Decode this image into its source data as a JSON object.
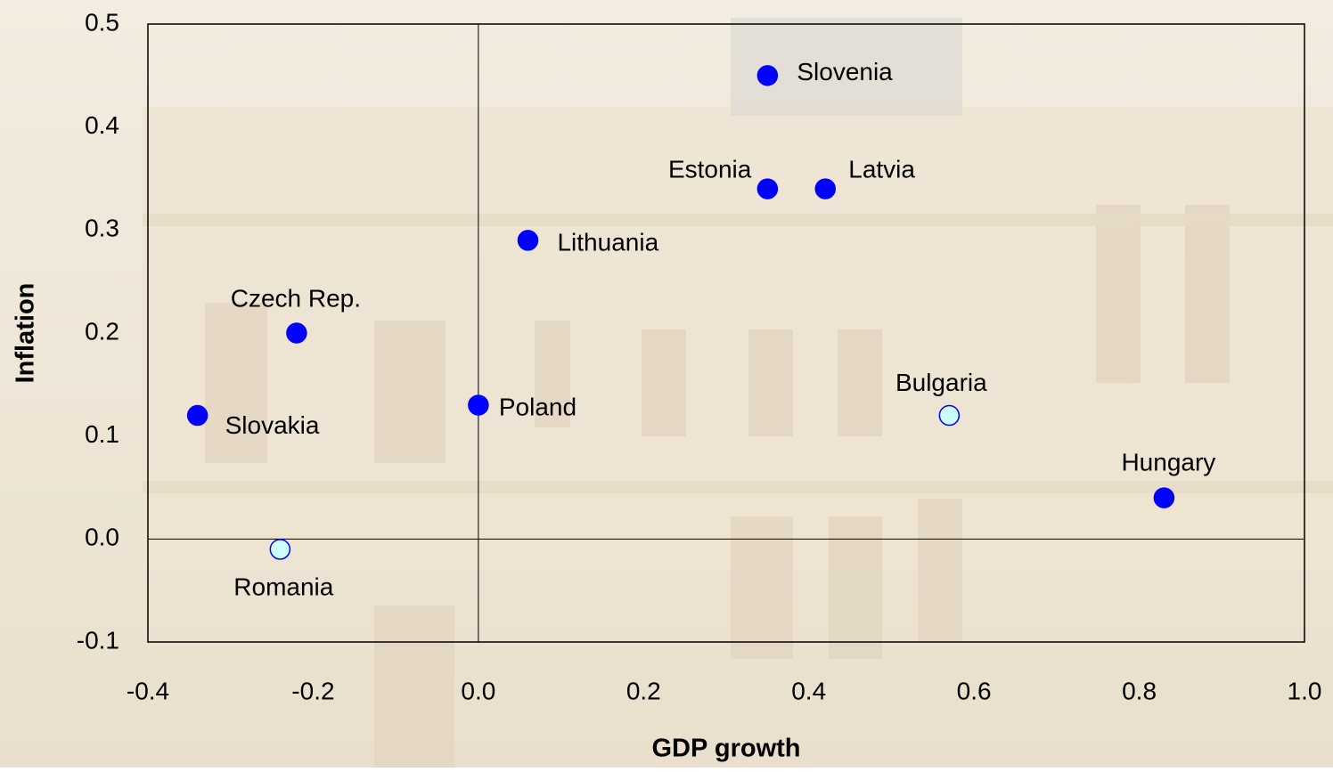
{
  "chart_data": {
    "type": "scatter",
    "x_label": "GDP growth",
    "y_label": "Inflation",
    "xlim": [
      -0.4,
      1.0
    ],
    "ylim": [
      -0.1,
      0.5
    ],
    "xticks": [
      -0.4,
      -0.2,
      {
        "value": 0,
        "label": "0.0"
      },
      0.2,
      0.4,
      0.6,
      0.8,
      {
        "value": 1,
        "label": "1.0"
      }
    ],
    "yticks": [
      -0.1,
      {
        "value": 0,
        "label": "0.0"
      },
      0.1,
      0.2,
      0.3,
      0.4,
      0.5
    ],
    "series": [
      {
        "color": "#0000ff",
        "edge": "#0000ff",
        "labels": [
          "Slovenia",
          "Estonia",
          "Latvia",
          "Lithuania",
          "Czech Rep.",
          "Slovakia",
          "Poland",
          "Hungary"
        ],
        "x": [
          0.35,
          0.35,
          0.42,
          0.06,
          -0.22,
          -0.34,
          0.0,
          0.83
        ],
        "values": [
          0.45,
          0.34,
          0.34,
          0.29,
          0.2,
          0.12,
          0.13,
          0.04
        ]
      },
      {
        "color": "#ccffff",
        "edge": "#0000ff",
        "labels": [
          "Bulgaria",
          "Romania"
        ],
        "x": [
          0.57,
          -0.24
        ],
        "values": [
          0.12,
          -0.01
        ]
      }
    ]
  }
}
